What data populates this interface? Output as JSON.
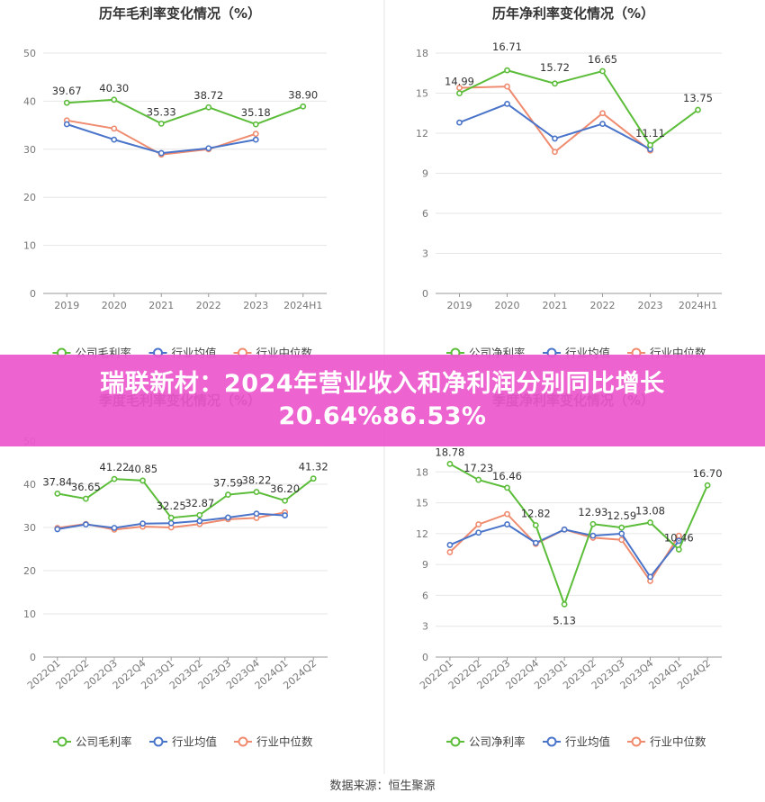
{
  "colors": {
    "company": "#5cbd3a",
    "industry_avg": "#4a74c9",
    "industry_median": "#ef8b6f",
    "banner": "#ec58ce"
  },
  "legend_labels": {
    "net": [
      "公司净利率",
      "行业均值",
      "行业中位数"
    ],
    "gross": [
      "公司毛利率",
      "行业均值",
      "行业中位数"
    ]
  },
  "banner": {
    "text": "瑞联新材：2024年营业收入和净利润分别同比增长20.64%86.53%"
  },
  "source": "数据来源：恒生聚源",
  "chart_data": [
    {
      "type": "line",
      "title": "历年毛利率变化情况（%）",
      "categories": [
        "2019",
        "2020",
        "2021",
        "2022",
        "2023",
        "2024H1"
      ],
      "ylim": [
        0,
        50
      ],
      "yticks": [
        0,
        10,
        20,
        30,
        40,
        50
      ],
      "grid": true,
      "legend": "bottom",
      "series": [
        {
          "name": "公司毛利率",
          "values": [
            39.67,
            40.3,
            35.33,
            38.72,
            35.18,
            38.9
          ],
          "labels": [
            "39.67",
            "40.30",
            "35.33",
            "38.72",
            "35.18",
            "38.90"
          ]
        },
        {
          "name": "行业均值",
          "values": [
            35.2,
            32.0,
            29.2,
            30.2,
            32.0,
            null
          ]
        },
        {
          "name": "行业中位数",
          "values": [
            36.0,
            34.3,
            28.9,
            30.0,
            33.2,
            null
          ]
        }
      ]
    },
    {
      "type": "line",
      "title": "历年净利率变化情况（%）",
      "categories": [
        "2019",
        "2020",
        "2021",
        "2022",
        "2023",
        "2024H1"
      ],
      "ylim": [
        0,
        18
      ],
      "yticks": [
        0,
        3,
        6,
        9,
        12,
        15,
        18
      ],
      "grid": true,
      "legend": "bottom",
      "series": [
        {
          "name": "公司净利率",
          "values": [
            14.99,
            16.71,
            15.72,
            16.65,
            11.11,
            13.75
          ],
          "labels": [
            "14.99",
            "16.71",
            "15.72",
            "16.65",
            "11.11",
            "13.75"
          ]
        },
        {
          "name": "行业均值",
          "values": [
            12.8,
            14.2,
            11.6,
            12.7,
            10.8,
            null
          ]
        },
        {
          "name": "行业中位数",
          "values": [
            15.4,
            15.5,
            10.6,
            13.5,
            10.7,
            null
          ]
        }
      ]
    },
    {
      "type": "line",
      "title": "季度毛利率变化情况（%）",
      "categories": [
        "2022Q1",
        "2022Q2",
        "2022Q3",
        "2022Q4",
        "2023Q1",
        "2023Q2",
        "2023Q3",
        "2023Q4",
        "2024Q1",
        "2024Q2"
      ],
      "ylim": [
        0,
        50
      ],
      "yticks": [
        0,
        10,
        20,
        30,
        40,
        50
      ],
      "grid": true,
      "legend": "bottom",
      "series": [
        {
          "name": "公司毛利率",
          "values": [
            37.84,
            36.65,
            41.22,
            40.85,
            32.25,
            32.87,
            37.59,
            38.22,
            36.2,
            41.32
          ],
          "labels": [
            "37.84",
            "36.65",
            "41.22",
            "40.85",
            "32.25",
            "32.87",
            "37.59",
            "38.22",
            "36.20",
            "41.32"
          ]
        },
        {
          "name": "行业均值",
          "values": [
            29.6,
            30.7,
            29.9,
            30.9,
            31.0,
            31.5,
            32.3,
            33.2,
            32.8,
            null
          ]
        },
        {
          "name": "行业中位数",
          "values": [
            29.9,
            30.8,
            29.5,
            30.2,
            30.0,
            30.8,
            31.9,
            32.2,
            33.5,
            null
          ]
        }
      ]
    },
    {
      "type": "line",
      "title": "季度净利率变化情况（%）",
      "categories": [
        "2022Q1",
        "2022Q2",
        "2022Q3",
        "2022Q4",
        "2023Q1",
        "2023Q2",
        "2023Q3",
        "2023Q4",
        "2024Q1",
        "2024Q2"
      ],
      "ylim": [
        0,
        21
      ],
      "yticks": [
        0,
        3,
        6,
        9,
        12,
        15,
        18
      ],
      "grid": true,
      "legend": "bottom",
      "series": [
        {
          "name": "公司净利率",
          "values": [
            18.78,
            17.23,
            16.46,
            12.82,
            5.13,
            12.93,
            12.59,
            13.08,
            10.46,
            16.7
          ],
          "labels": [
            "18.78",
            "17.23",
            "16.46",
            "12.82",
            "5.13",
            "12.93",
            "12.59",
            "13.08",
            "10.46",
            "16.70"
          ]
        },
        {
          "name": "行业均值",
          "values": [
            10.9,
            12.1,
            12.9,
            11.1,
            12.4,
            11.8,
            12.0,
            7.8,
            11.3,
            null
          ]
        },
        {
          "name": "行业中位数",
          "values": [
            10.2,
            12.9,
            13.9,
            11.0,
            12.4,
            11.6,
            11.4,
            7.4,
            11.8,
            null
          ]
        }
      ]
    }
  ]
}
